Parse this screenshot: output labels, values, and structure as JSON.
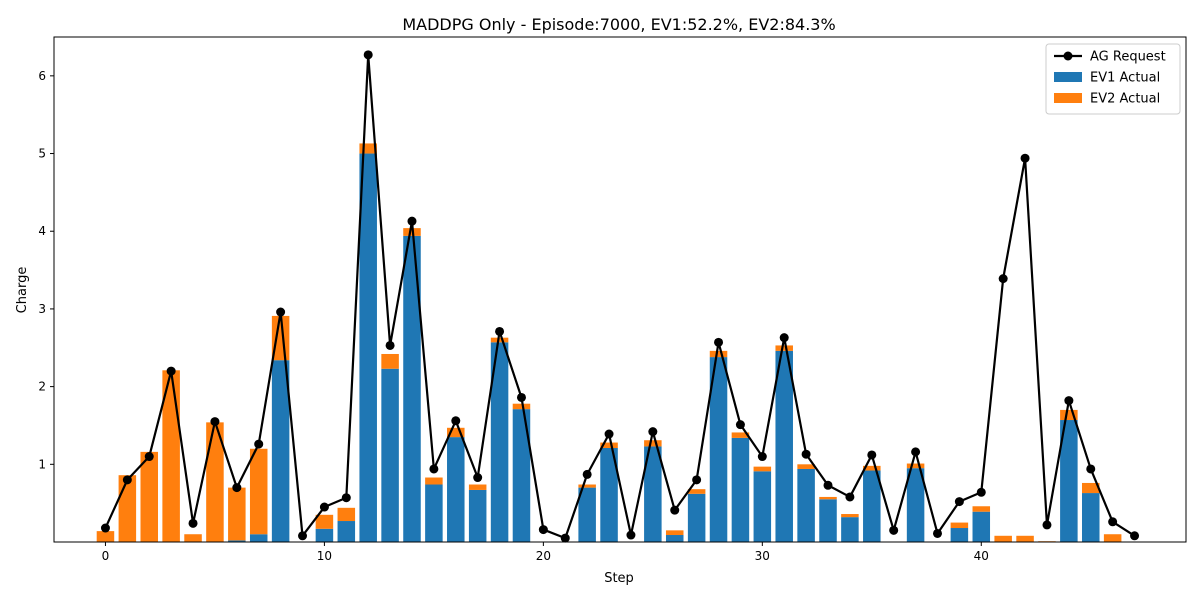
{
  "chart_data": {
    "type": "bar",
    "title": "MADDPG Only - Episode:7000, EV1:52.2%, EV2:84.3%",
    "xlabel": "Step",
    "ylabel": "Charge",
    "xlim": [
      -2.35,
      49.35
    ],
    "ylim": [
      0,
      6.5
    ],
    "xticks": [
      0,
      10,
      20,
      30,
      40
    ],
    "yticks": [
      1,
      2,
      3,
      4,
      5,
      6
    ],
    "grid": false,
    "legend_position": "top-right",
    "x": [
      0,
      1,
      2,
      3,
      4,
      5,
      6,
      7,
      8,
      9,
      10,
      11,
      12,
      13,
      14,
      15,
      16,
      17,
      18,
      19,
      20,
      21,
      22,
      23,
      24,
      25,
      26,
      27,
      28,
      29,
      30,
      31,
      32,
      33,
      34,
      35,
      36,
      37,
      38,
      39,
      40,
      41,
      42,
      43,
      44,
      45,
      46,
      47
    ],
    "series": [
      {
        "name": "AG Request",
        "kind": "line",
        "color": "#000000",
        "values": [
          0.18,
          0.8,
          1.1,
          2.2,
          0.24,
          1.55,
          0.7,
          1.26,
          2.96,
          0.08,
          0.45,
          0.57,
          6.27,
          2.53,
          4.13,
          0.94,
          1.56,
          0.83,
          2.71,
          1.86,
          0.16,
          0.05,
          0.87,
          1.39,
          0.09,
          1.42,
          0.41,
          0.8,
          2.57,
          1.51,
          1.1,
          2.63,
          1.13,
          0.73,
          0.58,
          1.12,
          0.15,
          1.16,
          0.11,
          0.52,
          0.64,
          3.39,
          4.94,
          0.22,
          1.82,
          0.94,
          0.26,
          0.08
        ]
      },
      {
        "name": "EV1 Actual",
        "kind": "bar",
        "color": "#1f77b4",
        "values": [
          0,
          0,
          0,
          0,
          0,
          0,
          0.02,
          0.1,
          2.34,
          0,
          0.17,
          0.27,
          5,
          2.23,
          3.94,
          0.74,
          1.35,
          0.67,
          2.57,
          1.71,
          0,
          0,
          0.7,
          1.21,
          0,
          1.23,
          0.09,
          0.62,
          2.38,
          1.34,
          0.91,
          2.46,
          0.94,
          0.55,
          0.32,
          0.92,
          0,
          0.95,
          0,
          0.18,
          0.39,
          0,
          0,
          0,
          1.57,
          0.63,
          0,
          0
        ]
      },
      {
        "name": "EV2 Actual",
        "kind": "bar",
        "color": "#ff7f0e",
        "values": [
          0.14,
          0.86,
          1.16,
          2.21,
          0.1,
          1.54,
          0.68,
          1.1,
          0.57,
          0,
          0.18,
          0.17,
          0.13,
          0.19,
          0.1,
          0.09,
          0.12,
          0.07,
          0.06,
          0.07,
          0,
          0,
          0.04,
          0.07,
          0,
          0.08,
          0.06,
          0.06,
          0.08,
          0.07,
          0.06,
          0.07,
          0.06,
          0.03,
          0.04,
          0.06,
          0,
          0.06,
          0,
          0.07,
          0.07,
          0.08,
          0.08,
          0.01,
          0.13,
          0.13,
          0.1,
          0
        ]
      }
    ]
  }
}
